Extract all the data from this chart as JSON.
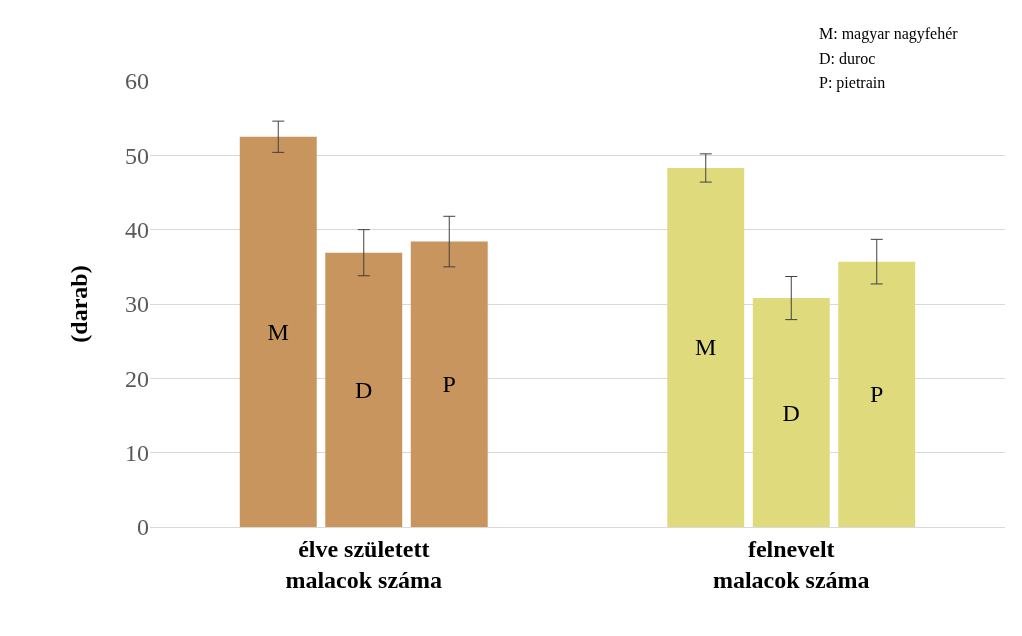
{
  "chart_data": {
    "type": "bar",
    "ylabel": "(darab)",
    "categories": [
      "élve született\nmalacok száma",
      "felnevelt\nmalacok száma"
    ],
    "series": [
      {
        "name": "M",
        "colors": [
          "#c8955e",
          "#dfdb7c"
        ],
        "values": [
          52.5,
          48.3
        ],
        "errors": [
          2.1,
          1.9
        ]
      },
      {
        "name": "D",
        "colors": [
          "#c8955e",
          "#dfdb7c"
        ],
        "values": [
          36.9,
          30.8
        ],
        "errors": [
          3.1,
          2.9
        ]
      },
      {
        "name": "P",
        "colors": [
          "#c8955e",
          "#dfdb7c"
        ],
        "values": [
          38.4,
          35.7
        ],
        "errors": [
          3.4,
          3.0
        ]
      }
    ],
    "ylim": [
      0,
      60
    ],
    "yticks": [
      0,
      10,
      20,
      30,
      40,
      50,
      60
    ],
    "grid": "y",
    "legend": false,
    "annotations": [
      "M: magyar nagyfehér",
      "D: duroc",
      "P: pietrain"
    ]
  }
}
